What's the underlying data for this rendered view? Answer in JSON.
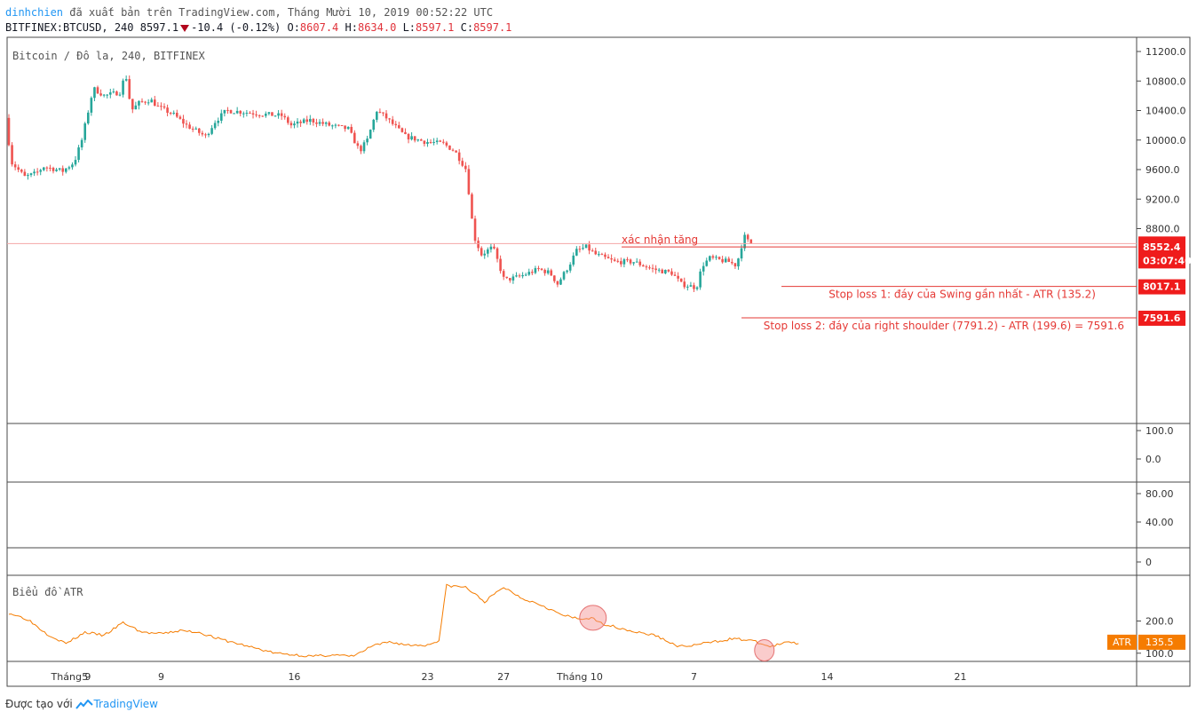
{
  "header": {
    "author": "dinhchien",
    "published": "đã xuất bản trên TradingView.com, Tháng Mười 10, 2019 00:52:22 UTC",
    "symbol_line": "BITFINEX:BTCUSD, 240 8597.1",
    "change": "-10.4 (-0.12%)",
    "o_label": "O:",
    "o_value": "8607.4",
    "h_label": "H:",
    "h_value": "8634.0",
    "l_label": "L:",
    "l_value": "8597.1",
    "c_label": "C:",
    "c_value": "8597.1"
  },
  "footer": {
    "made_with": "Được tạo với",
    "brand": "TradingView"
  },
  "colors": {
    "up": "#26a69a",
    "down": "#ef5350",
    "atr": "#f57c00",
    "line_red": "#e53935",
    "tag_red": "#ef1c1c"
  },
  "chart_data": [
    {
      "type": "candlestick",
      "title": "Bitcoin / Đô la, 240, BITFINEX",
      "ylim": [
        8000,
        11200
      ],
      "y_ticks": [
        "11200.0",
        "10800.0",
        "10400.0",
        "10000.0",
        "9600.0",
        "9200.0",
        "8800.0"
      ],
      "x_ticks": [
        {
          "label": "Tháng 9",
          "day": 0
        },
        {
          "label": "5",
          "day": 4
        },
        {
          "label": "9",
          "day": 8
        },
        {
          "label": "16",
          "day": 15
        },
        {
          "label": "23",
          "day": 22
        },
        {
          "label": "27",
          "day": 26
        },
        {
          "label": "Tháng 10",
          "day": 30
        },
        {
          "label": "7",
          "day": 36
        },
        {
          "label": "14",
          "day": 43
        },
        {
          "label": "21",
          "day": 50
        }
      ],
      "path": [
        [
          0,
          10300
        ],
        [
          0.3,
          9700
        ],
        [
          1,
          9500
        ],
        [
          1.6,
          9550
        ],
        [
          2,
          9640
        ],
        [
          3,
          9580
        ],
        [
          3.6,
          9700
        ],
        [
          4,
          10000
        ],
        [
          4.6,
          10700
        ],
        [
          5.2,
          10600
        ],
        [
          6,
          10650
        ],
        [
          6.3,
          10900
        ],
        [
          6.6,
          10400
        ],
        [
          7,
          10500
        ],
        [
          7.6,
          10550
        ],
        [
          8,
          10450
        ],
        [
          8.8,
          10350
        ],
        [
          9.5,
          10200
        ],
        [
          10.5,
          10050
        ],
        [
          11,
          10250
        ],
        [
          11.6,
          10400
        ],
        [
          12.5,
          10380
        ],
        [
          13.5,
          10350
        ],
        [
          14.5,
          10330
        ],
        [
          15,
          10200
        ],
        [
          16,
          10270
        ],
        [
          17,
          10200
        ],
        [
          18,
          10150
        ],
        [
          18.6,
          9850
        ],
        [
          19,
          10000
        ],
        [
          19.5,
          10400
        ],
        [
          20,
          10300
        ],
        [
          21,
          10050
        ],
        [
          22,
          9980
        ],
        [
          23,
          9950
        ],
        [
          23.6,
          9850
        ],
        [
          24.2,
          9600
        ],
        [
          24.6,
          8700
        ],
        [
          25,
          8450
        ],
        [
          25.6,
          8550
        ],
        [
          26.2,
          8100
        ],
        [
          27,
          8150
        ],
        [
          28,
          8250
        ],
        [
          28.6,
          8200
        ],
        [
          29,
          8050
        ],
        [
          29.6,
          8300
        ],
        [
          30,
          8500
        ],
        [
          30.5,
          8550
        ],
        [
          31,
          8450
        ],
        [
          32,
          8350
        ],
        [
          33,
          8350
        ],
        [
          34,
          8250
        ],
        [
          35,
          8200
        ],
        [
          35.5,
          8050
        ],
        [
          36.3,
          8000
        ],
        [
          36.6,
          8300
        ],
        [
          37,
          8400
        ],
        [
          38,
          8350
        ],
        [
          38.4,
          8300
        ],
        [
          38.8,
          8700
        ],
        [
          39.1,
          8597
        ]
      ],
      "annotations": [
        {
          "text": "xác nhận tăng",
          "level": 8552.4
        },
        {
          "text": "Stop loss 1: đáy của Swing gần nhất - ATR (135.2)",
          "level": 8017.1
        },
        {
          "text": "Stop loss 2: đáy của right shoulder (7791.2) - ATR (199.6) = 7591.6",
          "level": 7591.6
        }
      ],
      "price_tags": [
        {
          "label": "8597.1",
          "level": 8597.1
        },
        {
          "label": "03:07:40",
          "level": 8597.1,
          "offset": "below"
        },
        {
          "label": "8552.4",
          "level": 8552.4
        },
        {
          "label": "8017.1",
          "level": 8017.1
        },
        {
          "label": "7591.6",
          "level": 7591.6
        }
      ]
    },
    {
      "type": "empty-pane",
      "y_ticks": [
        "100.0",
        "0.0"
      ]
    },
    {
      "type": "empty-pane",
      "y_ticks": [
        "80.00",
        "40.00"
      ]
    },
    {
      "type": "empty-pane",
      "y_ticks": [
        "0"
      ]
    },
    {
      "type": "line",
      "title": "Biểu đồ ATR",
      "ylim": [
        80,
        320
      ],
      "y_ticks": [
        "200.0",
        "100.0"
      ],
      "last_value": {
        "name": "ATR",
        "value": "135.5"
      },
      "points": [
        [
          0,
          225
        ],
        [
          1,
          205
        ],
        [
          2,
          160
        ],
        [
          3,
          130
        ],
        [
          4,
          165
        ],
        [
          5,
          155
        ],
        [
          6,
          195
        ],
        [
          7,
          165
        ],
        [
          8,
          160
        ],
        [
          9,
          170
        ],
        [
          10,
          165
        ],
        [
          11,
          145
        ],
        [
          12,
          130
        ],
        [
          13,
          115
        ],
        [
          14,
          100
        ],
        [
          15,
          95
        ],
        [
          16,
          90
        ],
        [
          17,
          95
        ],
        [
          18,
          90
        ],
        [
          18.6,
          105
        ],
        [
          19,
          120
        ],
        [
          20,
          135
        ],
        [
          21,
          125
        ],
        [
          22,
          125
        ],
        [
          22.6,
          140
        ],
        [
          23,
          310
        ],
        [
          24,
          305
        ],
        [
          25,
          260
        ],
        [
          26,
          305
        ],
        [
          27,
          270
        ],
        [
          28,
          250
        ],
        [
          29,
          220
        ],
        [
          30,
          205
        ],
        [
          30.6,
          210
        ],
        [
          31,
          195
        ],
        [
          32,
          180
        ],
        [
          33,
          165
        ],
        [
          34,
          155
        ],
        [
          35,
          125
        ],
        [
          35.5,
          120
        ],
        [
          36,
          125
        ],
        [
          37,
          135
        ],
        [
          38,
          145
        ],
        [
          39,
          140
        ],
        [
          40,
          120
        ],
        [
          41,
          135
        ],
        [
          41.5,
          130
        ]
      ],
      "highlights": [
        30.6,
        39.7
      ]
    }
  ]
}
